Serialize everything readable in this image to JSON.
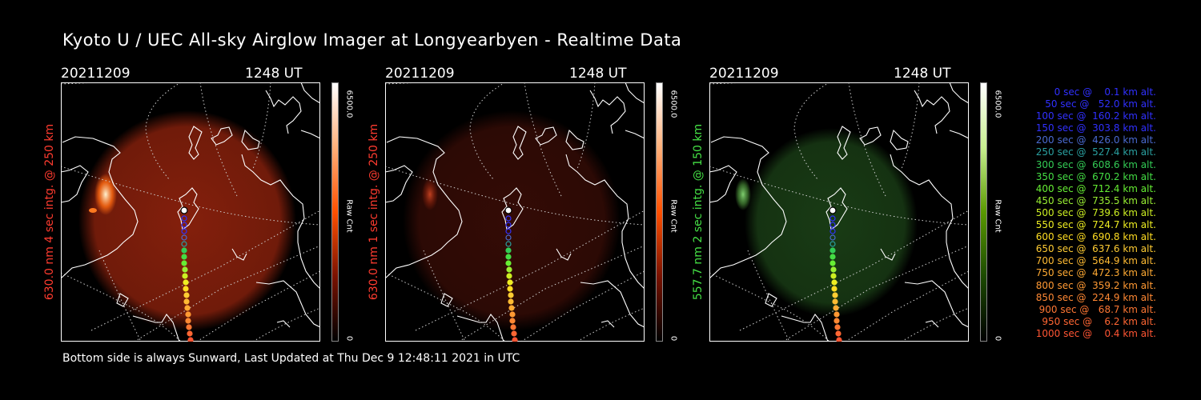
{
  "title": "Kyoto U / UEC All-sky Airglow Imager at Longyearbyen - Realtime Data",
  "footer": "Bottom side is always Sunward, Last Updated at Thu Dec  9 12:48:11 2021 in UTC",
  "panels": [
    {
      "date": "20211209",
      "time": "1248 UT",
      "ylabel": "630.0 nm 4 sec intg. @ 250 km",
      "ylabel_color": "#ff3b2f",
      "cbar_max": "6500.0",
      "cbar_min": "0",
      "cbar_unit": "Raw Cnt",
      "cbar_colors": [
        "#000000",
        "#7a1200",
        "#ff5000",
        "#ffb07a",
        "#ffffff"
      ],
      "glow_color": "#b02a10",
      "glow_opacity": 0.75,
      "hot_spot": true
    },
    {
      "date": "20211209",
      "time": "1248 UT",
      "ylabel": "630.0 nm 1 sec intg. @ 250 km",
      "ylabel_color": "#ff3b2f",
      "cbar_max": "6500.0",
      "cbar_min": "0",
      "cbar_unit": "Raw Cnt",
      "cbar_colors": [
        "#000000",
        "#7a1200",
        "#ff5000",
        "#ffb07a",
        "#ffffff"
      ],
      "glow_color": "#4a1008",
      "glow_opacity": 0.7,
      "hot_spot": true
    },
    {
      "date": "20211209",
      "time": "1248 UT",
      "ylabel": "557.7 nm 2 sec intg. @ 150 km",
      "ylabel_color": "#45e045",
      "cbar_max": "6500.0",
      "cbar_min": "0",
      "cbar_unit": "Raw Cnt",
      "cbar_colors": [
        "#000000",
        "#1c4a00",
        "#5a9a00",
        "#c8ef90",
        "#ffffff"
      ],
      "glow_color": "#1f4a1a",
      "glow_opacity": 0.8,
      "hot_spot": true
    }
  ],
  "legend": [
    {
      "text": "   0 sec @    0.1 km alt.",
      "color": "#3030ff"
    },
    {
      "text": "  50 sec @   52.0 km alt.",
      "color": "#3030ff"
    },
    {
      "text": " 100 sec @  160.2 km alt.",
      "color": "#3030ff"
    },
    {
      "text": " 150 sec @  303.8 km alt.",
      "color": "#3030ff"
    },
    {
      "text": " 200 sec @  426.0 km alt.",
      "color": "#4a6ad0"
    },
    {
      "text": " 250 sec @  527.4 km alt.",
      "color": "#2aa0a0"
    },
    {
      "text": " 300 sec @  608.6 km alt.",
      "color": "#33cc55"
    },
    {
      "text": " 350 sec @  670.2 km alt.",
      "color": "#44dd44"
    },
    {
      "text": " 400 sec @  712.4 km alt.",
      "color": "#66ee33"
    },
    {
      "text": " 450 sec @  735.5 km alt.",
      "color": "#99ee33"
    },
    {
      "text": " 500 sec @  739.6 km alt.",
      "color": "#ccee22"
    },
    {
      "text": " 550 sec @  724.7 km alt.",
      "color": "#eeee22"
    },
    {
      "text": " 600 sec @  690.8 km alt.",
      "color": "#ffdd22"
    },
    {
      "text": " 650 sec @  637.6 km alt.",
      "color": "#ffcc33"
    },
    {
      "text": " 700 sec @  564.9 km alt.",
      "color": "#ffbb33"
    },
    {
      "text": " 750 sec @  472.3 km alt.",
      "color": "#ffaa33"
    },
    {
      "text": " 800 sec @  359.2 km alt.",
      "color": "#ff9933"
    },
    {
      "text": " 850 sec @  224.9 km alt.",
      "color": "#ff8833"
    },
    {
      "text": " 900 sec @   68.7 km alt.",
      "color": "#ff7733"
    },
    {
      "text": " 950 sec @    6.2 km alt.",
      "color": "#ff6633"
    },
    {
      "text": "1000 sec @    0.4 km alt.",
      "color": "#ff5533"
    }
  ],
  "trajectory_colors": [
    "#ffffff",
    "#3030ff",
    "#3030ff",
    "#3030ff",
    "#4a6ad0",
    "#2aa0a0",
    "#33cc55",
    "#44dd44",
    "#66ee33",
    "#99ee33",
    "#ccee22",
    "#eeee22",
    "#ffdd22",
    "#ffcc33",
    "#ffbb33",
    "#ffaa33",
    "#ff9933",
    "#ff8833",
    "#ff7733",
    "#ff6633",
    "#ff5533"
  ]
}
